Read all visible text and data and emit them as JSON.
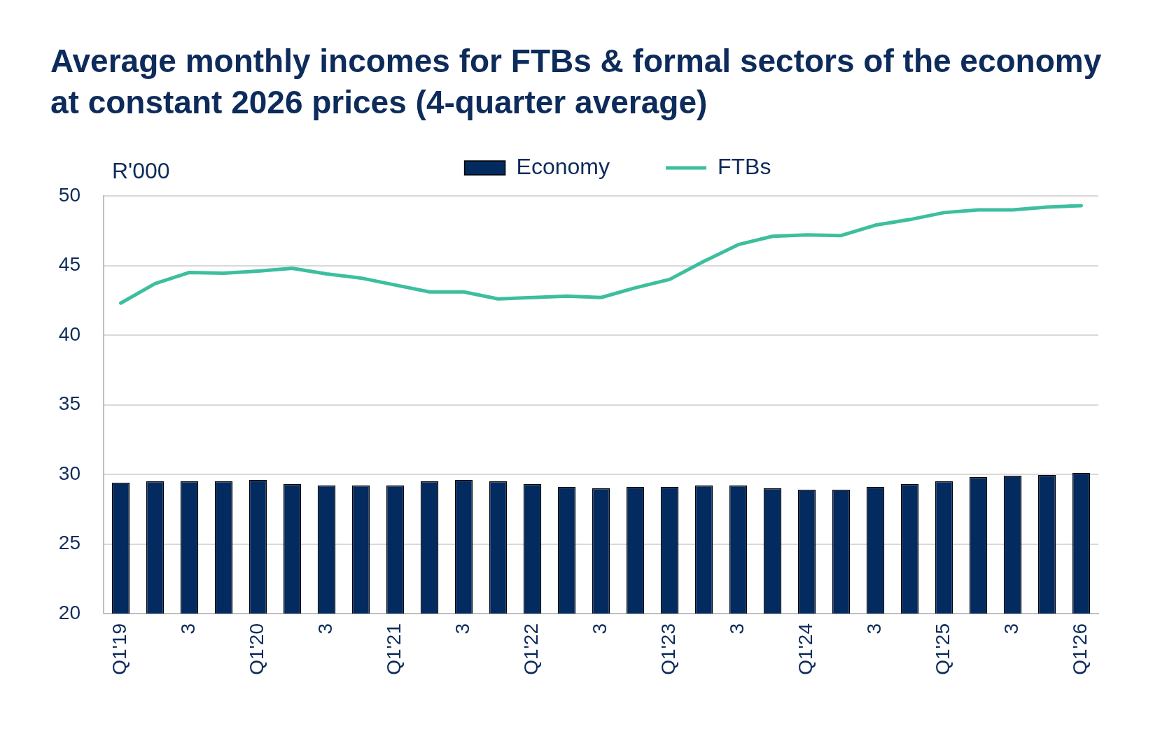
{
  "chart_data": {
    "type": "bar",
    "title": "Average monthly incomes for FTBs & formal sectors of the economy at constant 2026 prices (4-quarter average)",
    "ylabel": "R'000",
    "categories": [
      "Q1'19",
      null,
      "3",
      null,
      "Q1'20",
      null,
      "3",
      null,
      "Q1'21",
      null,
      "3",
      null,
      "Q1'22",
      null,
      "3",
      null,
      "Q1'23",
      null,
      "3",
      null,
      "Q1'24",
      null,
      "3",
      null,
      "Q1'25",
      null,
      "3",
      null,
      "Q1'26"
    ],
    "series": [
      {
        "name": "Economy",
        "color": "#032b60",
        "values": [
          29.4,
          29.5,
          29.5,
          29.5,
          29.6,
          29.3,
          29.2,
          29.2,
          29.2,
          29.5,
          29.6,
          29.5,
          29.3,
          29.1,
          29.0,
          29.1,
          29.1,
          29.2,
          29.2,
          29.0,
          28.9,
          28.9,
          29.1,
          29.3,
          29.5,
          29.8,
          29.9,
          29.95,
          30.1
        ]
      },
      {
        "name": "FTBs",
        "type": "line",
        "color": "#3dbf9f",
        "values": [
          42.3,
          43.7,
          44.5,
          44.45,
          44.6,
          44.8,
          44.4,
          44.1,
          43.6,
          43.1,
          43.1,
          42.6,
          42.7,
          42.8,
          42.7,
          43.4,
          44.0,
          45.3,
          46.5,
          47.1,
          47.2,
          47.15,
          47.9,
          48.3,
          48.8,
          49.0,
          49.0,
          49.2,
          49.3
        ]
      }
    ],
    "ylim": [
      20,
      50
    ],
    "yticks": [
      20,
      25,
      30,
      35,
      40,
      45,
      50
    ],
    "grid": "y",
    "legend": "top",
    "marker": "none",
    "line_style": "solid"
  }
}
